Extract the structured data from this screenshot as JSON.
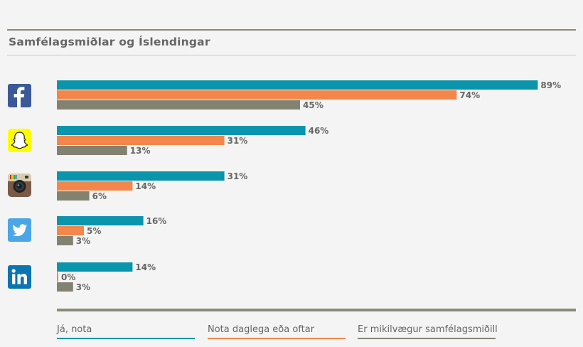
{
  "title": "Samfélagsmiðlar og Íslendingar",
  "colors": {
    "series1": "#0a95ad",
    "series2": "#f3874b",
    "series3": "#838271",
    "label": "#666666"
  },
  "icons": [
    "facebook-icon",
    "snapchat-icon",
    "instagram-icon",
    "twitter-icon",
    "linkedin-icon"
  ],
  "chart_data": {
    "type": "bar",
    "orientation": "horizontal",
    "categories": [
      "Facebook",
      "Snapchat",
      "Instagram",
      "Twitter",
      "LinkedIn"
    ],
    "series": [
      {
        "name": "Já, nota",
        "values": [
          89,
          46,
          31,
          16,
          14
        ]
      },
      {
        "name": "Nota daglega eða oftar",
        "values": [
          74,
          31,
          14,
          5,
          0
        ]
      },
      {
        "name": "Er mikilvægur samfélagsmiðill",
        "values": [
          45,
          13,
          6,
          3,
          3
        ]
      }
    ],
    "value_labels": [
      [
        "89%",
        "46%",
        "31%",
        "16%",
        "14%"
      ],
      [
        "74%",
        "31%",
        "14%",
        "5%",
        "0%"
      ],
      [
        "45%",
        "13%",
        "6%",
        "3%",
        "3%"
      ]
    ],
    "legend": "bottom",
    "grid": false
  },
  "legend": [
    "Já, nota",
    "Nota daglega eða oftar",
    "Er mikilvægur samfélagsmiðill"
  ]
}
